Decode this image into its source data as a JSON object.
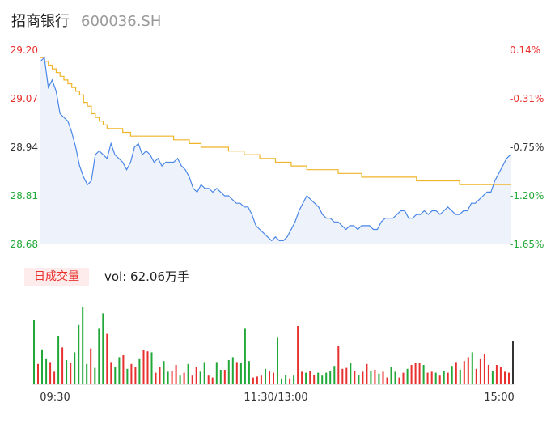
{
  "header": {
    "name": "招商银行",
    "code": "600036.SH"
  },
  "volume_panel": {
    "badge": "日成交量",
    "vol_label": "vol: 62.06万手"
  },
  "colors": {
    "up": "#e8312f",
    "down": "#22a838",
    "flat": "#333333",
    "price_line": "#4a86e8",
    "avg_line": "#f0b429",
    "area": "#eef3fb"
  },
  "chart_data": [
    {
      "type": "line",
      "title": "",
      "price_ticks": [
        "29.20",
        "29.07",
        "28.94",
        "28.81",
        "28.68"
      ],
      "pct_ticks": [
        "0.14%",
        "-0.31%",
        "-0.75%",
        "-1.20%",
        "-1.65%"
      ],
      "ylim": [
        28.68,
        29.2
      ],
      "x_labels": [
        "09:30",
        "11:30/13:00",
        "15:00"
      ],
      "series": [
        {
          "name": "price",
          "values": [
            29.17,
            29.18,
            29.1,
            29.12,
            29.09,
            29.03,
            29.02,
            29.01,
            28.98,
            28.94,
            28.89,
            28.86,
            28.84,
            28.85,
            28.92,
            28.93,
            28.92,
            28.91,
            28.95,
            28.92,
            28.91,
            28.9,
            28.88,
            28.9,
            28.94,
            28.95,
            28.92,
            28.93,
            28.92,
            28.9,
            28.91,
            28.89,
            28.9,
            28.9,
            28.9,
            28.91,
            28.89,
            28.88,
            28.86,
            28.83,
            28.82,
            28.84,
            28.83,
            28.83,
            28.82,
            28.83,
            28.82,
            28.81,
            28.81,
            28.8,
            28.79,
            28.79,
            28.78,
            28.78,
            28.76,
            28.73,
            28.72,
            28.71,
            28.7,
            28.69,
            28.7,
            28.69,
            28.69,
            28.7,
            28.72,
            28.74,
            28.77,
            28.79,
            28.81,
            28.8,
            28.79,
            28.78,
            28.76,
            28.75,
            28.75,
            28.74,
            28.74,
            28.73,
            28.72,
            28.73,
            28.73,
            28.72,
            28.73,
            28.73,
            28.73,
            28.72,
            28.72,
            28.74,
            28.75,
            28.75,
            28.75,
            28.76,
            28.77,
            28.77,
            28.75,
            28.75,
            28.76,
            28.76,
            28.77,
            28.76,
            28.77,
            28.77,
            28.76,
            28.77,
            28.78,
            28.77,
            28.76,
            28.76,
            28.77,
            28.77,
            28.79,
            28.79,
            28.8,
            28.81,
            28.82,
            28.82,
            28.85,
            28.87,
            28.89,
            28.91,
            28.92
          ]
        },
        {
          "name": "avg",
          "values": [
            29.18,
            29.17,
            29.16,
            29.15,
            29.14,
            29.13,
            29.12,
            29.11,
            29.1,
            29.09,
            29.08,
            29.06,
            29.05,
            29.03,
            29.02,
            29.01,
            29.0,
            28.99,
            28.99,
            28.99,
            28.99,
            28.98,
            28.98,
            28.97,
            28.97,
            28.97,
            28.97,
            28.97,
            28.97,
            28.97,
            28.97,
            28.97,
            28.97,
            28.97,
            28.96,
            28.96,
            28.96,
            28.96,
            28.95,
            28.95,
            28.95,
            28.94,
            28.94,
            28.94,
            28.94,
            28.94,
            28.94,
            28.94,
            28.93,
            28.93,
            28.93,
            28.93,
            28.92,
            28.92,
            28.92,
            28.92,
            28.91,
            28.91,
            28.91,
            28.91,
            28.9,
            28.9,
            28.9,
            28.9,
            28.89,
            28.89,
            28.89,
            28.89,
            28.88,
            28.88,
            28.88,
            28.88,
            28.88,
            28.88,
            28.88,
            28.88,
            28.87,
            28.87,
            28.87,
            28.87,
            28.87,
            28.87,
            28.86,
            28.86,
            28.86,
            28.86,
            28.86,
            28.86,
            28.86,
            28.86,
            28.86,
            28.86,
            28.86,
            28.86,
            28.86,
            28.86,
            28.85,
            28.85,
            28.85,
            28.85,
            28.85,
            28.85,
            28.85,
            28.85,
            28.85,
            28.85,
            28.85,
            28.84,
            28.84,
            28.84,
            28.84,
            28.84,
            28.84,
            28.84,
            28.84,
            28.84,
            28.84,
            28.84,
            28.84,
            28.84,
            28.84
          ]
        }
      ]
    },
    {
      "type": "bar",
      "title": "日成交量",
      "values": [
        66,
        21,
        36,
        26,
        23,
        13,
        50,
        38,
        25,
        22,
        33,
        61,
        80,
        21,
        37,
        17,
        58,
        73,
        52,
        23,
        18,
        28,
        30,
        16,
        21,
        18,
        26,
        35,
        34,
        33,
        12,
        18,
        24,
        13,
        14,
        20,
        9,
        12,
        21,
        9,
        18,
        13,
        23,
        9,
        7,
        23,
        15,
        15,
        25,
        28,
        23,
        22,
        58,
        24,
        7,
        8,
        9,
        16,
        14,
        12,
        48,
        6,
        10,
        6,
        9,
        60,
        13,
        12,
        14,
        10,
        12,
        9,
        12,
        14,
        19,
        40,
        16,
        17,
        22,
        14,
        10,
        13,
        21,
        14,
        15,
        11,
        13,
        7,
        18,
        13,
        7,
        12,
        16,
        20,
        22,
        22,
        20,
        12,
        13,
        12,
        9,
        14,
        12,
        19,
        23,
        15,
        24,
        28,
        33,
        16,
        26,
        31,
        20,
        14,
        20,
        18,
        13,
        12,
        45
      ],
      "colors": [
        "down",
        "up",
        "down",
        "down",
        "up",
        "up",
        "down",
        "up",
        "down",
        "up",
        "down",
        "down",
        "down",
        "down",
        "up",
        "down",
        "down",
        "down",
        "up",
        "up",
        "down",
        "down",
        "up",
        "down",
        "up",
        "up",
        "down",
        "up",
        "up",
        "down",
        "up",
        "up",
        "down",
        "down",
        "up",
        "up",
        "down",
        "up",
        "down",
        "up",
        "up",
        "down",
        "down",
        "up",
        "up",
        "down",
        "down",
        "up",
        "down",
        "down",
        "up",
        "down",
        "down",
        "down",
        "up",
        "up",
        "up",
        "down",
        "up",
        "up",
        "down",
        "down",
        "down",
        "up",
        "down",
        "up",
        "up",
        "down",
        "up",
        "up",
        "down",
        "down",
        "down",
        "down",
        "down",
        "up",
        "up",
        "up",
        "down",
        "up",
        "down",
        "up",
        "up",
        "down",
        "up",
        "down",
        "up",
        "up",
        "down",
        "down",
        "up",
        "up",
        "down",
        "up",
        "up",
        "up",
        "down",
        "up",
        "up",
        "down",
        "up",
        "down",
        "up",
        "down",
        "up",
        "down",
        "up",
        "up",
        "down",
        "up",
        "up",
        "up",
        "up",
        "down",
        "up",
        "up",
        "up",
        "up",
        "flat"
      ]
    }
  ]
}
